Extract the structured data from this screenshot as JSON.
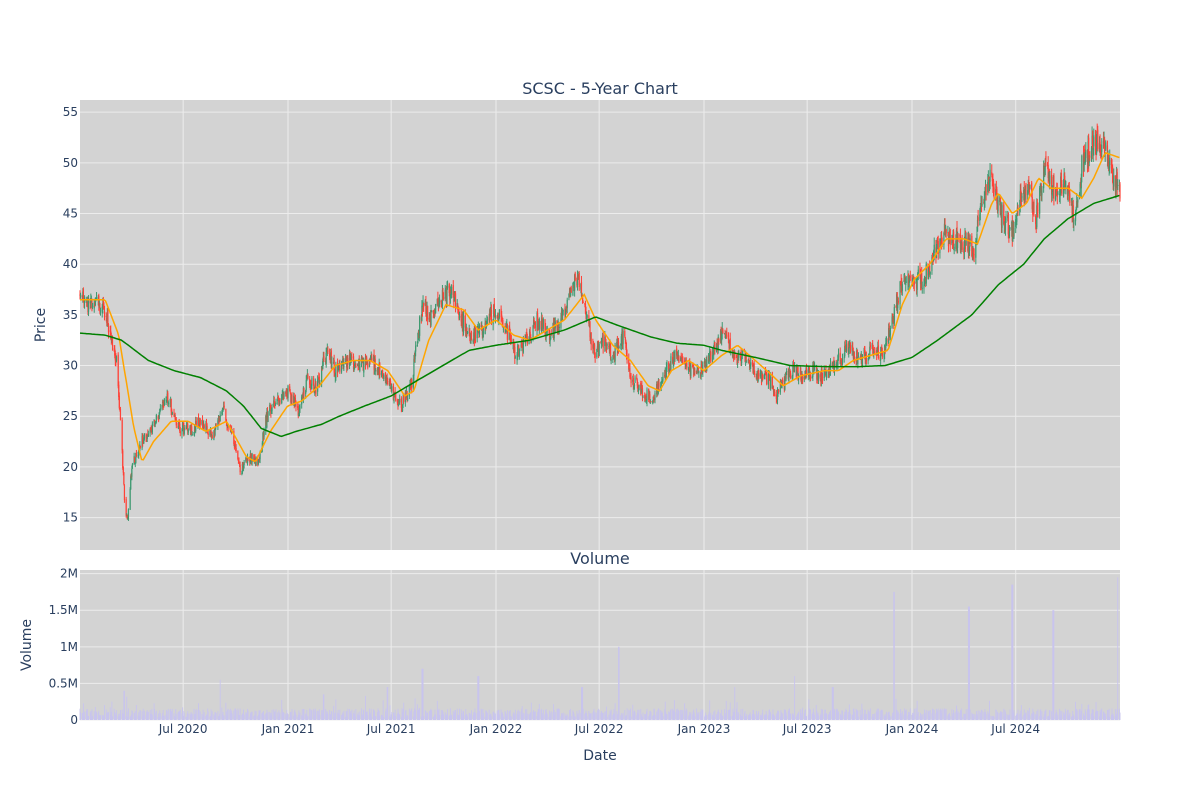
{
  "chart_data": [
    {
      "type": "candlestick",
      "title": "SCSC - 5-Year Chart",
      "xlabel": "",
      "ylabel": "Price",
      "ylim": [
        11.8,
        56.2
      ],
      "yticks": [
        15,
        20,
        25,
        30,
        35,
        40,
        45,
        50,
        55
      ],
      "xlim": [
        "2020-01-02",
        "2024-12-31"
      ],
      "grid": true,
      "colors": {
        "increasing": "#3d9970",
        "decreasing": "#ff4136",
        "ma_short": "#ffa500",
        "ma_long": "#008000",
        "plot_bg": "#d3d3d3",
        "grid": "#ececec"
      },
      "price_anchors": [
        [
          "2020-01-02",
          36.8
        ],
        [
          "2020-01-20",
          35.8
        ],
        [
          "2020-02-10",
          36.0
        ],
        [
          "2020-02-24",
          33.5
        ],
        [
          "2020-03-05",
          31.0
        ],
        [
          "2020-03-12",
          25.5
        ],
        [
          "2020-03-20",
          17.0
        ],
        [
          "2020-03-25",
          14.5
        ],
        [
          "2020-04-02",
          20.0
        ],
        [
          "2020-04-20",
          22.5
        ],
        [
          "2020-05-15",
          24.5
        ],
        [
          "2020-06-05",
          27.0
        ],
        [
          "2020-06-20",
          24.0
        ],
        [
          "2020-07-10",
          23.5
        ],
        [
          "2020-08-01",
          24.5
        ],
        [
          "2020-08-20",
          23.0
        ],
        [
          "2020-09-10",
          25.5
        ],
        [
          "2020-09-25",
          23.0
        ],
        [
          "2020-10-10",
          19.5
        ],
        [
          "2020-10-25",
          21.0
        ],
        [
          "2020-11-10",
          20.5
        ],
        [
          "2020-11-25",
          25.0
        ],
        [
          "2020-12-10",
          26.5
        ],
        [
          "2020-12-31",
          27.5
        ],
        [
          "2021-01-20",
          25.5
        ],
        [
          "2021-02-05",
          29.0
        ],
        [
          "2021-02-20",
          27.5
        ],
        [
          "2021-03-10",
          31.5
        ],
        [
          "2021-03-25",
          29.5
        ],
        [
          "2021-04-15",
          30.5
        ],
        [
          "2021-05-05",
          30.0
        ],
        [
          "2021-05-25",
          30.5
        ],
        [
          "2021-06-15",
          29.5
        ],
        [
          "2021-07-01",
          27.5
        ],
        [
          "2021-07-20",
          26.0
        ],
        [
          "2021-08-05",
          28.0
        ],
        [
          "2021-08-25",
          36.0
        ],
        [
          "2021-09-10",
          34.5
        ],
        [
          "2021-09-25",
          36.5
        ],
        [
          "2021-10-15",
          37.5
        ],
        [
          "2021-11-01",
          34.5
        ],
        [
          "2021-11-20",
          32.5
        ],
        [
          "2021-12-10",
          34.0
        ],
        [
          "2021-12-31",
          35.5
        ],
        [
          "2022-01-20",
          33.5
        ],
        [
          "2022-02-05",
          31.0
        ],
        [
          "2022-02-25",
          32.5
        ],
        [
          "2022-03-15",
          34.5
        ],
        [
          "2022-04-05",
          33.0
        ],
        [
          "2022-04-25",
          34.5
        ],
        [
          "2022-05-10",
          37.0
        ],
        [
          "2022-05-25",
          39.0
        ],
        [
          "2022-06-10",
          34.5
        ],
        [
          "2022-06-25",
          31.0
        ],
        [
          "2022-07-10",
          32.5
        ],
        [
          "2022-07-25",
          31.0
        ],
        [
          "2022-08-15",
          33.0
        ],
        [
          "2022-08-25",
          28.5
        ],
        [
          "2022-09-15",
          27.5
        ],
        [
          "2022-10-01",
          26.5
        ],
        [
          "2022-10-20",
          29.0
        ],
        [
          "2022-11-10",
          31.0
        ],
        [
          "2022-12-01",
          30.0
        ],
        [
          "2022-12-20",
          29.0
        ],
        [
          "2023-01-15",
          31.0
        ],
        [
          "2023-02-05",
          33.5
        ],
        [
          "2023-02-25",
          31.0
        ],
        [
          "2023-03-15",
          30.5
        ],
        [
          "2023-04-05",
          29.0
        ],
        [
          "2023-04-25",
          28.5
        ],
        [
          "2023-05-10",
          27.0
        ],
        [
          "2023-06-01",
          29.5
        ],
        [
          "2023-06-20",
          29.0
        ],
        [
          "2023-07-10",
          29.5
        ],
        [
          "2023-07-30",
          29.0
        ],
        [
          "2023-08-20",
          30.0
        ],
        [
          "2023-09-10",
          32.0
        ],
        [
          "2023-09-30",
          30.5
        ],
        [
          "2023-10-20",
          31.5
        ],
        [
          "2023-11-10",
          31.0
        ],
        [
          "2023-11-30",
          35.0
        ],
        [
          "2023-12-15",
          38.5
        ],
        [
          "2024-01-05",
          38.5
        ],
        [
          "2024-01-20",
          38.5
        ],
        [
          "2024-02-05",
          40.5
        ],
        [
          "2024-02-25",
          43.0
        ],
        [
          "2024-03-15",
          42.5
        ],
        [
          "2024-04-05",
          42.0
        ],
        [
          "2024-04-20",
          41.5
        ],
        [
          "2024-05-05",
          47.0
        ],
        [
          "2024-05-20",
          49.0
        ],
        [
          "2024-06-05",
          45.0
        ],
        [
          "2024-06-25",
          43.0
        ],
        [
          "2024-07-10",
          46.5
        ],
        [
          "2024-07-25",
          48.0
        ],
        [
          "2024-08-05",
          44.0
        ],
        [
          "2024-08-20",
          49.5
        ],
        [
          "2024-09-05",
          47.5
        ],
        [
          "2024-09-25",
          48.0
        ],
        [
          "2024-10-10",
          44.5
        ],
        [
          "2024-10-25",
          49.5
        ],
        [
          "2024-11-10",
          51.5
        ],
        [
          "2024-11-30",
          52.0
        ],
        [
          "2024-12-15",
          49.0
        ],
        [
          "2024-12-31",
          47.0
        ]
      ],
      "moving_averages": [
        {
          "color": "#ffa500",
          "points": [
            [
              "2020-01-02",
              36.5
            ],
            [
              "2020-02-15",
              36.5
            ],
            [
              "2020-03-10",
              33.0
            ],
            [
              "2020-04-05",
              24.0
            ],
            [
              "2020-04-20",
              20.5
            ],
            [
              "2020-05-10",
              22.5
            ],
            [
              "2020-06-10",
              24.5
            ],
            [
              "2020-07-10",
              24.5
            ],
            [
              "2020-08-10",
              23.5
            ],
            [
              "2020-09-15",
              24.5
            ],
            [
              "2020-10-20",
              21.0
            ],
            [
              "2020-11-05",
              20.5
            ],
            [
              "2020-12-01",
              23.5
            ],
            [
              "2020-12-31",
              26.0
            ],
            [
              "2021-01-25",
              26.5
            ],
            [
              "2021-02-25",
              28.0
            ],
            [
              "2021-03-25",
              30.0
            ],
            [
              "2021-04-25",
              30.5
            ],
            [
              "2021-05-25",
              30.5
            ],
            [
              "2021-06-25",
              29.5
            ],
            [
              "2021-07-25",
              27.0
            ],
            [
              "2021-08-10",
              27.5
            ],
            [
              "2021-09-05",
              32.5
            ],
            [
              "2021-10-05",
              36.0
            ],
            [
              "2021-11-05",
              35.5
            ],
            [
              "2021-12-01",
              33.5
            ],
            [
              "2022-01-01",
              34.5
            ],
            [
              "2022-02-01",
              33.0
            ],
            [
              "2022-03-01",
              32.5
            ],
            [
              "2022-04-01",
              33.5
            ],
            [
              "2022-05-01",
              34.5
            ],
            [
              "2022-06-05",
              37.0
            ],
            [
              "2022-06-25",
              34.5
            ],
            [
              "2022-07-25",
              32.0
            ],
            [
              "2022-08-25",
              30.5
            ],
            [
              "2022-09-25",
              28.0
            ],
            [
              "2022-10-15",
              27.5
            ],
            [
              "2022-11-05",
              29.5
            ],
            [
              "2022-12-05",
              30.5
            ],
            [
              "2023-01-01",
              29.5
            ],
            [
              "2023-02-01",
              31.0
            ],
            [
              "2023-03-01",
              32.0
            ],
            [
              "2023-04-01",
              30.5
            ],
            [
              "2023-05-01",
              29.0
            ],
            [
              "2023-05-20",
              28.0
            ],
            [
              "2023-06-20",
              29.0
            ],
            [
              "2023-08-01",
              29.5
            ],
            [
              "2023-08-25",
              29.5
            ],
            [
              "2023-09-20",
              30.5
            ],
            [
              "2023-10-20",
              31.0
            ],
            [
              "2023-11-20",
              31.5
            ],
            [
              "2023-12-15",
              36.0
            ],
            [
              "2024-01-05",
              38.5
            ],
            [
              "2024-02-01",
              40.0
            ],
            [
              "2024-03-01",
              42.5
            ],
            [
              "2024-04-01",
              42.5
            ],
            [
              "2024-04-25",
              42.0
            ],
            [
              "2024-05-20",
              46.0
            ],
            [
              "2024-06-01",
              47.0
            ],
            [
              "2024-06-25",
              45.0
            ],
            [
              "2024-07-20",
              46.0
            ],
            [
              "2024-08-10",
              48.5
            ],
            [
              "2024-09-01",
              47.5
            ],
            [
              "2024-10-01",
              47.5
            ],
            [
              "2024-10-25",
              46.5
            ],
            [
              "2024-11-15",
              48.5
            ],
            [
              "2024-12-05",
              51.0
            ],
            [
              "2024-12-31",
              50.5
            ]
          ]
        },
        {
          "color": "#008000",
          "points": [
            [
              "2020-01-02",
              33.2
            ],
            [
              "2020-02-15",
              33.0
            ],
            [
              "2020-03-15",
              32.5
            ],
            [
              "2020-05-01",
              30.5
            ],
            [
              "2020-06-15",
              29.5
            ],
            [
              "2020-08-01",
              28.8
            ],
            [
              "2020-09-15",
              27.5
            ],
            [
              "2020-10-15",
              26.0
            ],
            [
              "2020-11-15",
              23.8
            ],
            [
              "2020-12-20",
              23.0
            ],
            [
              "2021-01-15",
              23.5
            ],
            [
              "2021-03-01",
              24.2
            ],
            [
              "2021-04-01",
              25.0
            ],
            [
              "2021-05-15",
              26.0
            ],
            [
              "2021-07-01",
              27.0
            ],
            [
              "2021-08-15",
              28.5
            ],
            [
              "2021-10-15",
              30.5
            ],
            [
              "2021-11-15",
              31.5
            ],
            [
              "2022-01-01",
              32.0
            ],
            [
              "2022-03-01",
              32.5
            ],
            [
              "2022-05-01",
              33.5
            ],
            [
              "2022-06-25",
              34.8
            ],
            [
              "2022-08-01",
              34.0
            ],
            [
              "2022-10-01",
              32.8
            ],
            [
              "2022-11-15",
              32.2
            ],
            [
              "2023-01-01",
              32.0
            ],
            [
              "2023-02-01",
              31.5
            ],
            [
              "2023-04-01",
              30.8
            ],
            [
              "2023-06-01",
              30.0
            ],
            [
              "2023-08-01",
              29.9
            ],
            [
              "2023-10-01",
              29.9
            ],
            [
              "2023-11-15",
              30.0
            ],
            [
              "2024-01-01",
              30.8
            ],
            [
              "2024-02-15",
              32.5
            ],
            [
              "2024-04-15",
              35.0
            ],
            [
              "2024-06-01",
              38.0
            ],
            [
              "2024-07-15",
              40.0
            ],
            [
              "2024-08-20",
              42.5
            ],
            [
              "2024-10-01",
              44.5
            ],
            [
              "2024-11-15",
              46.0
            ],
            [
              "2024-12-31",
              46.8
            ]
          ]
        }
      ]
    },
    {
      "type": "bar",
      "title": "Volume",
      "xlabel": "Date",
      "ylabel": "Volume",
      "ylim": [
        0,
        2.05
      ],
      "yticks": [
        0,
        0.5,
        1,
        1.5,
        2
      ],
      "ytick_labels": [
        "0",
        "0.5M",
        "1M",
        "1.5M",
        "2M"
      ],
      "xticks": [
        "2020-07-01",
        "2021-01-01",
        "2021-07-01",
        "2022-01-01",
        "2022-07-01",
        "2023-01-01",
        "2023-07-01",
        "2024-01-01",
        "2024-07-01"
      ],
      "xtick_labels": [
        "Jul 2020",
        "Jan 2021",
        "Jul 2021",
        "Jan 2022",
        "Jul 2022",
        "Jan 2023",
        "Jul 2023",
        "Jan 2024",
        "Jul 2024"
      ],
      "unit": "M",
      "colors": {
        "bar": "#c8c4ee"
      },
      "volume_spikes": [
        [
          "2020-03-20",
          0.4
        ],
        [
          "2020-09-05",
          0.55
        ],
        [
          "2021-03-05",
          0.35
        ],
        [
          "2021-06-25",
          0.45
        ],
        [
          "2021-08-25",
          0.7
        ],
        [
          "2021-12-01",
          0.6
        ],
        [
          "2022-06-01",
          0.45
        ],
        [
          "2022-08-05",
          1.0
        ],
        [
          "2023-02-25",
          0.45
        ],
        [
          "2023-06-10",
          0.6
        ],
        [
          "2023-08-15",
          0.45
        ],
        [
          "2023-12-01",
          1.75
        ],
        [
          "2024-04-10",
          1.55
        ],
        [
          "2024-06-25",
          1.85
        ],
        [
          "2024-09-05",
          1.5
        ],
        [
          "2024-12-28",
          1.95
        ]
      ]
    }
  ]
}
